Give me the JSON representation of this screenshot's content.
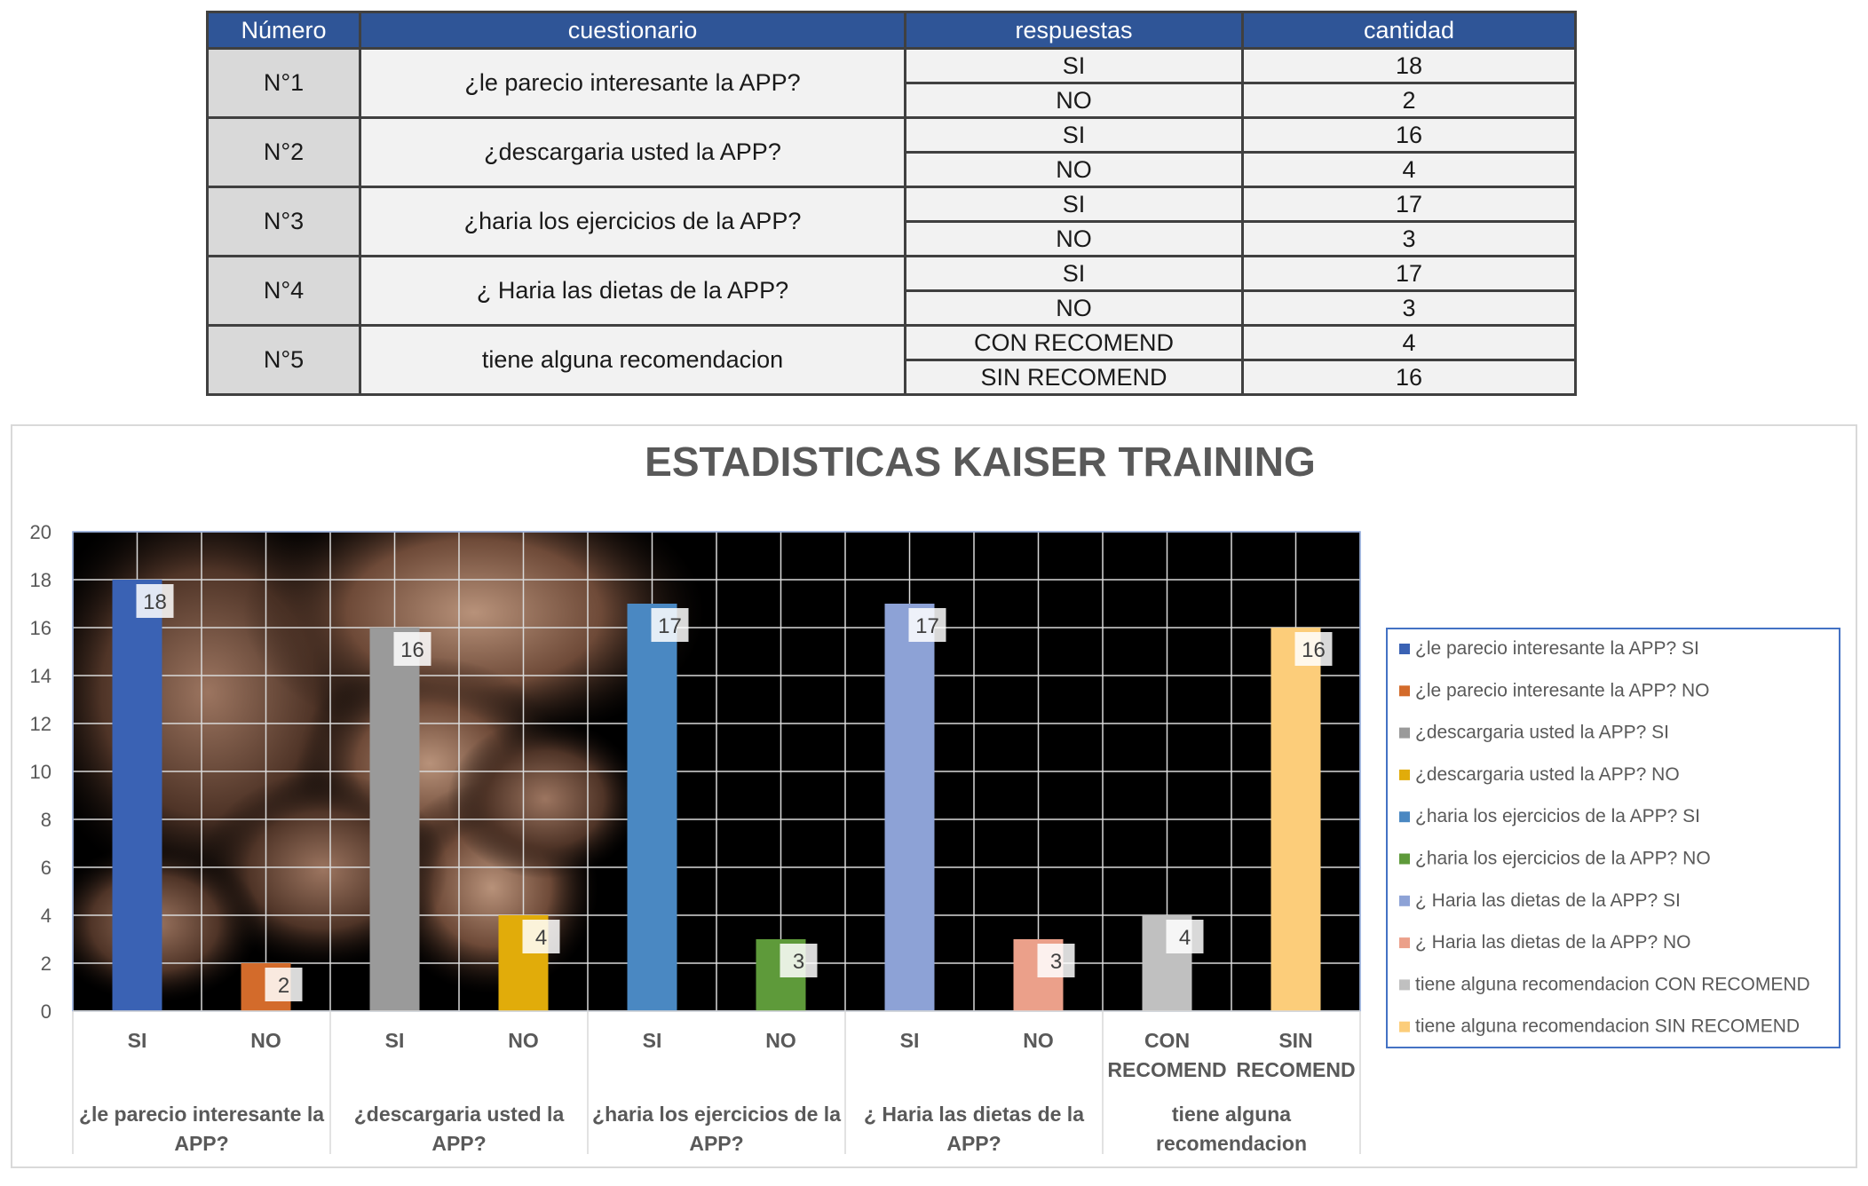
{
  "table": {
    "headers": [
      "Número",
      "cuestionario",
      "respuestas",
      "cantidad"
    ],
    "rows": [
      {
        "numero": "N°1",
        "pregunta": "¿le parecio interesante la APP?",
        "respuestas": [
          {
            "r": "SI",
            "c": "18"
          },
          {
            "r": "NO",
            "c": "2"
          }
        ]
      },
      {
        "numero": "N°2",
        "pregunta": "¿descargaria usted la APP?",
        "respuestas": [
          {
            "r": "SI",
            "c": "16"
          },
          {
            "r": "NO",
            "c": "4"
          }
        ]
      },
      {
        "numero": "N°3",
        "pregunta": "¿haria los ejercicios de la APP?",
        "respuestas": [
          {
            "r": "SI",
            "c": "17"
          },
          {
            "r": "NO",
            "c": "3"
          }
        ]
      },
      {
        "numero": "N°4",
        "pregunta": "¿ Haria las dietas de la APP?",
        "respuestas": [
          {
            "r": "SI",
            "c": "17"
          },
          {
            "r": "NO",
            "c": "3"
          }
        ]
      },
      {
        "numero": "N°5",
        "pregunta": "tiene alguna recomendacion",
        "respuestas": [
          {
            "r": "CON RECOMEND",
            "c": "4"
          },
          {
            "r": "SIN RECOMEND",
            "c": "16"
          }
        ]
      }
    ]
  },
  "chart_data": {
    "type": "bar",
    "title": "ESTADISTICAS KAISER TRAINING",
    "xlabel": "",
    "ylabel": "",
    "ylim": [
      0,
      20
    ],
    "yticks": [
      0,
      2,
      4,
      6,
      8,
      10,
      12,
      14,
      16,
      18,
      20
    ],
    "grid": true,
    "legend_position": "right",
    "background": "muscle-torso-photo",
    "groups": [
      {
        "label": "¿le parecio interesante la APP?",
        "label_lines": [
          "¿le parecio interesante la",
          "APP?"
        ]
      },
      {
        "label": "¿descargaria usted la APP?",
        "label_lines": [
          "¿descargaria usted la",
          "APP?"
        ]
      },
      {
        "label": "¿haria los ejercicios de la APP?",
        "label_lines": [
          "¿haria los ejercicios de la",
          "APP?"
        ]
      },
      {
        "label": "¿ Haria las dietas de la APP?",
        "label_lines": [
          "¿ Haria las dietas de la",
          "APP?"
        ]
      },
      {
        "label": "tiene alguna recomendacion",
        "label_lines": [
          "tiene alguna",
          "recomendacion"
        ]
      }
    ],
    "categories": [
      {
        "label_lines": [
          "SI"
        ],
        "group": 0
      },
      {
        "label_lines": [
          "NO"
        ],
        "group": 0
      },
      {
        "label_lines": [
          "SI"
        ],
        "group": 1
      },
      {
        "label_lines": [
          "NO"
        ],
        "group": 1
      },
      {
        "label_lines": [
          "SI"
        ],
        "group": 2
      },
      {
        "label_lines": [
          "NO"
        ],
        "group": 2
      },
      {
        "label_lines": [
          "SI"
        ],
        "group": 3
      },
      {
        "label_lines": [
          "NO"
        ],
        "group": 3
      },
      {
        "label_lines": [
          "CON",
          "RECOMEND"
        ],
        "group": 4
      },
      {
        "label_lines": [
          "SIN",
          "RECOMEND"
        ],
        "group": 4
      }
    ],
    "series": [
      {
        "name": "¿le parecio interesante la APP? SI",
        "value": 18,
        "color": "#3a62b4"
      },
      {
        "name": "¿le parecio interesante la APP? NO",
        "value": 2,
        "color": "#d36b2b"
      },
      {
        "name": "¿descargaria usted la APP? SI",
        "value": 16,
        "color": "#9a9a9a"
      },
      {
        "name": "¿descargaria usted la APP? NO",
        "value": 4,
        "color": "#e1ac0a"
      },
      {
        "name": "¿haria los ejercicios de la APP? SI",
        "value": 17,
        "color": "#4a88c2"
      },
      {
        "name": "¿haria los ejercicios de la APP? NO",
        "value": 3,
        "color": "#5e9a3a"
      },
      {
        "name": "¿ Haria las dietas de la APP? SI",
        "value": 17,
        "color": "#8da2d6"
      },
      {
        "name": "¿ Haria las dietas de la APP? NO",
        "value": 3,
        "color": "#eba08a"
      },
      {
        "name": "tiene alguna recomendacion CON RECOMEND",
        "value": 4,
        "color": "#c0c0c0"
      },
      {
        "name": "tiene alguna recomendacion SIN RECOMEND",
        "value": 16,
        "color": "#fccd7a"
      }
    ]
  }
}
